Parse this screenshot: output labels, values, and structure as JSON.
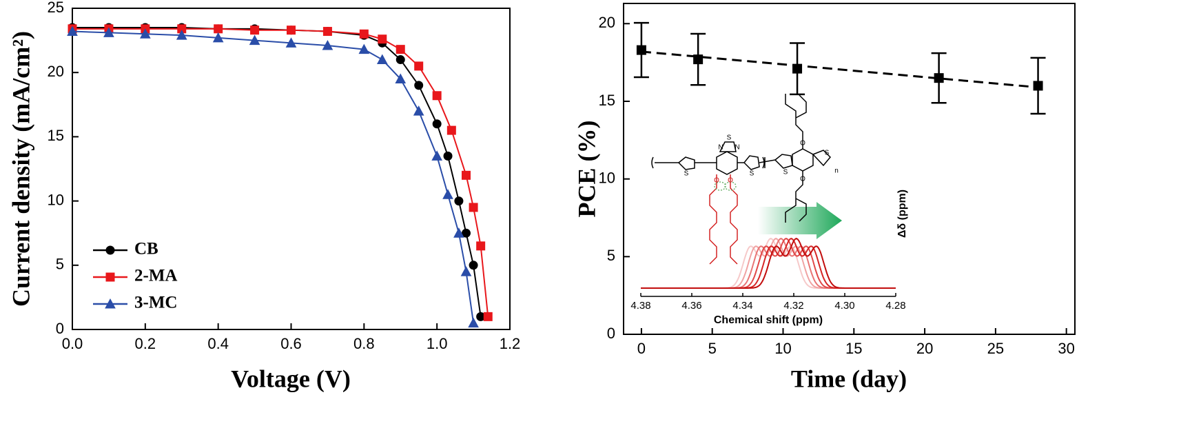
{
  "chart_data": [
    {
      "type": "line",
      "xlabel": "Voltage (V)",
      "ylabel": "Current density (mA/cm²)",
      "xlim": [
        0,
        1.2
      ],
      "xticks": [
        {
          "value": 0,
          "label": "0.0"
        },
        0.2,
        0.4,
        0.6,
        0.8,
        {
          "value": 1,
          "label": "1.0"
        },
        1.2
      ],
      "ylim": [
        0,
        25
      ],
      "yticks": [
        0,
        5,
        10,
        15,
        20,
        25
      ],
      "legend": "lower-left",
      "series": [
        {
          "name": "CB",
          "color": "#000000",
          "marker": "circle",
          "x": [
            0,
            0.1,
            0.2,
            0.3,
            0.4,
            0.5,
            0.6,
            0.7,
            0.8,
            0.85,
            0.9,
            0.95,
            1.0,
            1.03,
            1.06,
            1.08,
            1.1,
            1.12
          ],
          "values": [
            23.5,
            23.5,
            23.5,
            23.5,
            23.4,
            23.4,
            23.3,
            23.2,
            22.9,
            22.3,
            21,
            19,
            16,
            13.5,
            10,
            7.5,
            5,
            1
          ]
        },
        {
          "name": "2-MA",
          "color": "#e8171b",
          "marker": "square",
          "x": [
            0,
            0.1,
            0.2,
            0.3,
            0.4,
            0.5,
            0.6,
            0.7,
            0.8,
            0.85,
            0.9,
            0.95,
            1.0,
            1.04,
            1.08,
            1.1,
            1.12,
            1.14
          ],
          "values": [
            23.4,
            23.4,
            23.4,
            23.4,
            23.4,
            23.3,
            23.3,
            23.2,
            23.0,
            22.6,
            21.8,
            20.5,
            18.2,
            15.5,
            12,
            9.5,
            6.5,
            1
          ]
        },
        {
          "name": "3-MC",
          "color": "#2a4da8",
          "marker": "triangle",
          "x": [
            0,
            0.1,
            0.2,
            0.3,
            0.4,
            0.5,
            0.6,
            0.7,
            0.8,
            0.85,
            0.9,
            0.95,
            1.0,
            1.03,
            1.06,
            1.08,
            1.1
          ],
          "values": [
            23.2,
            23.1,
            23.0,
            22.9,
            22.7,
            22.5,
            22.3,
            22.1,
            21.8,
            21.0,
            19.5,
            17,
            13.5,
            10.5,
            7.5,
            4.5,
            0.5
          ]
        }
      ]
    },
    {
      "type": "errorbar",
      "xlabel": "Time (day)",
      "ylabel": "PCE (%)",
      "xlim": [
        -1.26,
        30.6
      ],
      "xticks": [
        0,
        5,
        10,
        15,
        20,
        25,
        30
      ],
      "ylim": [
        0,
        21.3
      ],
      "yticks": [
        0,
        5,
        10,
        15,
        20
      ],
      "color": "#000000",
      "x": [
        0,
        4,
        11,
        21,
        28
      ],
      "values": [
        18.3,
        17.7,
        17.1,
        16.5,
        16.0
      ],
      "errors": [
        1.75,
        1.65,
        1.65,
        1.6,
        1.8
      ],
      "trend": {
        "x": [
          0,
          28
        ],
        "values": [
          18.2,
          15.9
        ]
      },
      "inset": {
        "xlabel": "Chemical shift (ppm)",
        "ylabel": "Δδ (ppm)",
        "xlim": [
          4.38,
          4.28
        ],
        "xticks": [
          4.38,
          4.36,
          4.34,
          4.32,
          {
            "value": 4.3,
            "label": "4.30"
          },
          4.28
        ],
        "peaks": [
          4.329,
          4.327,
          4.325,
          4.323,
          4.321,
          4.319
        ],
        "colors": [
          "#f6c9c9",
          "#f0a3a3",
          "#e87575",
          "#e04848",
          "#d62626",
          "#c20d0d"
        ],
        "structure_labels": [
          "S",
          "N",
          "N",
          "S",
          "S",
          "S",
          "S",
          "O",
          "O",
          "O",
          "O",
          "n"
        ]
      }
    }
  ]
}
